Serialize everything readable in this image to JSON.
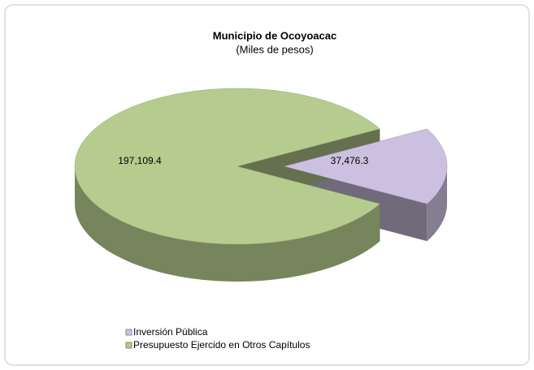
{
  "chart_data": {
    "type": "pie",
    "title": "Municipio de Ocoyoacac",
    "subtitle": "(Miles de pesos)",
    "categories": [
      "Inversión Pública",
      "Presupuesto Ejercido en Otros Capítulos"
    ],
    "values": [
      37476.3,
      197109.4
    ],
    "value_labels": [
      "37,476.3",
      "197,109.4"
    ],
    "colors": [
      "#ccc0e0",
      "#b5cc8e"
    ],
    "legend": "bottom-left"
  }
}
